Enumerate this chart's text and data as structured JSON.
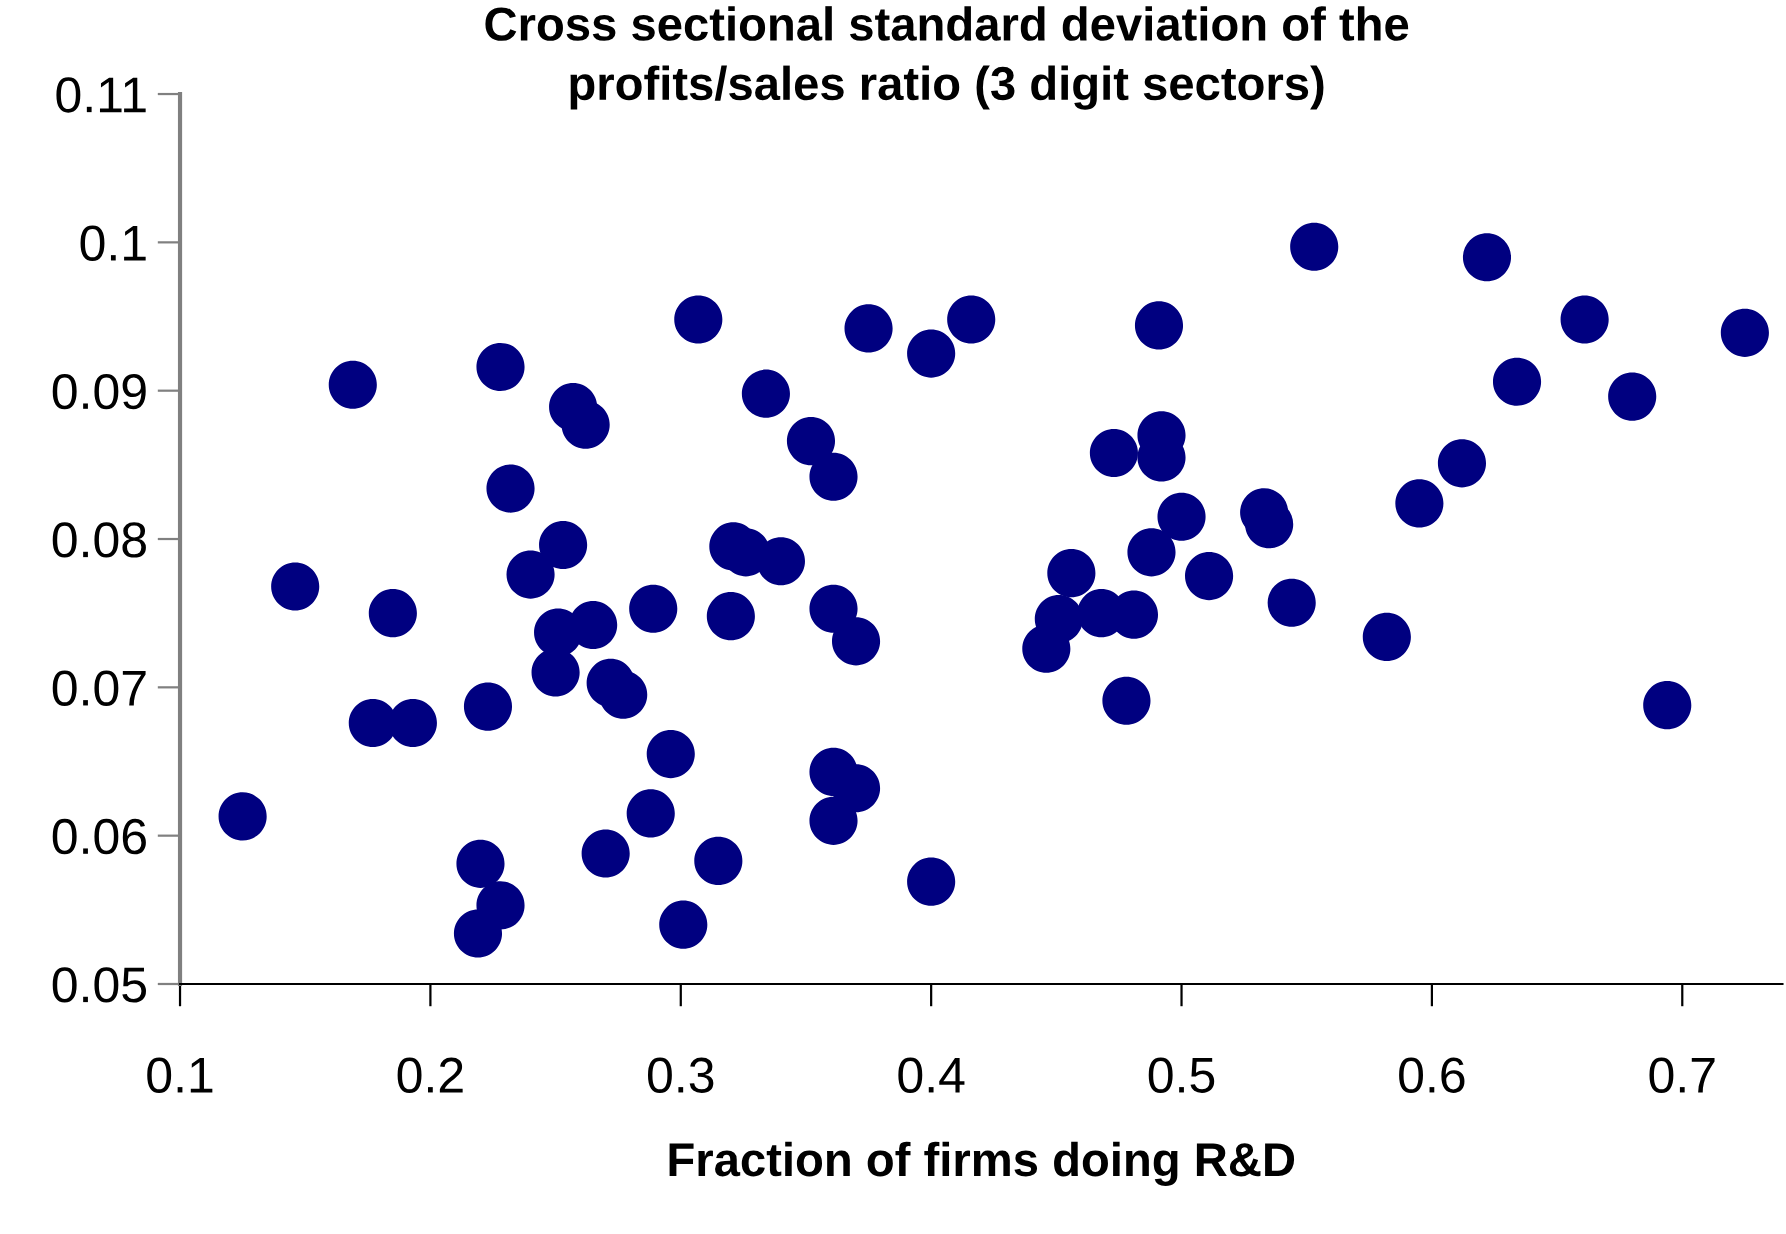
{
  "chart_data": {
    "type": "scatter",
    "title": "Cross sectional standard deviation of the\nprofits/sales ratio (3 digit sectors)",
    "xlabel": "Fraction of firms doing R&D",
    "x": [
      0.169,
      0.228,
      0.257,
      0.262,
      0.232,
      0.253,
      0.24,
      0.146,
      0.185,
      0.251,
      0.265,
      0.289,
      0.32,
      0.34,
      0.361,
      0.37,
      0.25,
      0.272,
      0.277,
      0.223,
      0.177,
      0.193,
      0.296,
      0.361,
      0.37,
      0.125,
      0.288,
      0.361,
      0.22,
      0.27,
      0.315,
      0.228,
      0.219,
      0.301,
      0.307,
      0.375,
      0.4,
      0.416,
      0.491,
      0.334,
      0.352,
      0.361,
      0.473,
      0.492,
      0.492,
      0.5,
      0.488,
      0.321,
      0.326,
      0.456,
      0.451,
      0.446,
      0.468,
      0.481,
      0.478,
      0.4,
      0.553,
      0.622,
      0.661,
      0.725,
      0.634,
      0.68,
      0.612,
      0.595,
      0.533,
      0.535,
      0.511,
      0.544,
      0.582,
      0.694
    ],
    "values": [
      0.0904,
      0.0916,
      0.0889,
      0.0877,
      0.0834,
      0.0796,
      0.0776,
      0.0768,
      0.075,
      0.0737,
      0.0742,
      0.0753,
      0.0748,
      0.0785,
      0.0753,
      0.0731,
      0.071,
      0.0703,
      0.0695,
      0.0687,
      0.0676,
      0.0676,
      0.0655,
      0.0643,
      0.0632,
      0.0613,
      0.0615,
      0.061,
      0.0581,
      0.0588,
      0.0583,
      0.0553,
      0.0534,
      0.054,
      0.0948,
      0.0942,
      0.0925,
      0.0948,
      0.0944,
      0.0898,
      0.0866,
      0.0842,
      0.0858,
      0.087,
      0.0855,
      0.0815,
      0.0791,
      0.0795,
      0.0791,
      0.0777,
      0.0746,
      0.0726,
      0.075,
      0.0749,
      0.0691,
      0.0569,
      0.0997,
      0.099,
      0.0948,
      0.0939,
      0.0906,
      0.0896,
      0.0851,
      0.0824,
      0.0818,
      0.081,
      0.0775,
      0.0757,
      0.0734,
      0.0688
    ],
    "color": "#000080",
    "marker": "circle",
    "xlim": [
      0.1,
      0.74
    ],
    "xticks": [
      0.1,
      0.2,
      0.3,
      0.4,
      0.5,
      0.6,
      0.7
    ],
    "ylim": [
      0.05,
      0.11
    ],
    "yticks": [
      0.05,
      0.06,
      0.07,
      0.08,
      0.09,
      0.1,
      0.11
    ],
    "grid": false,
    "legend": false
  }
}
